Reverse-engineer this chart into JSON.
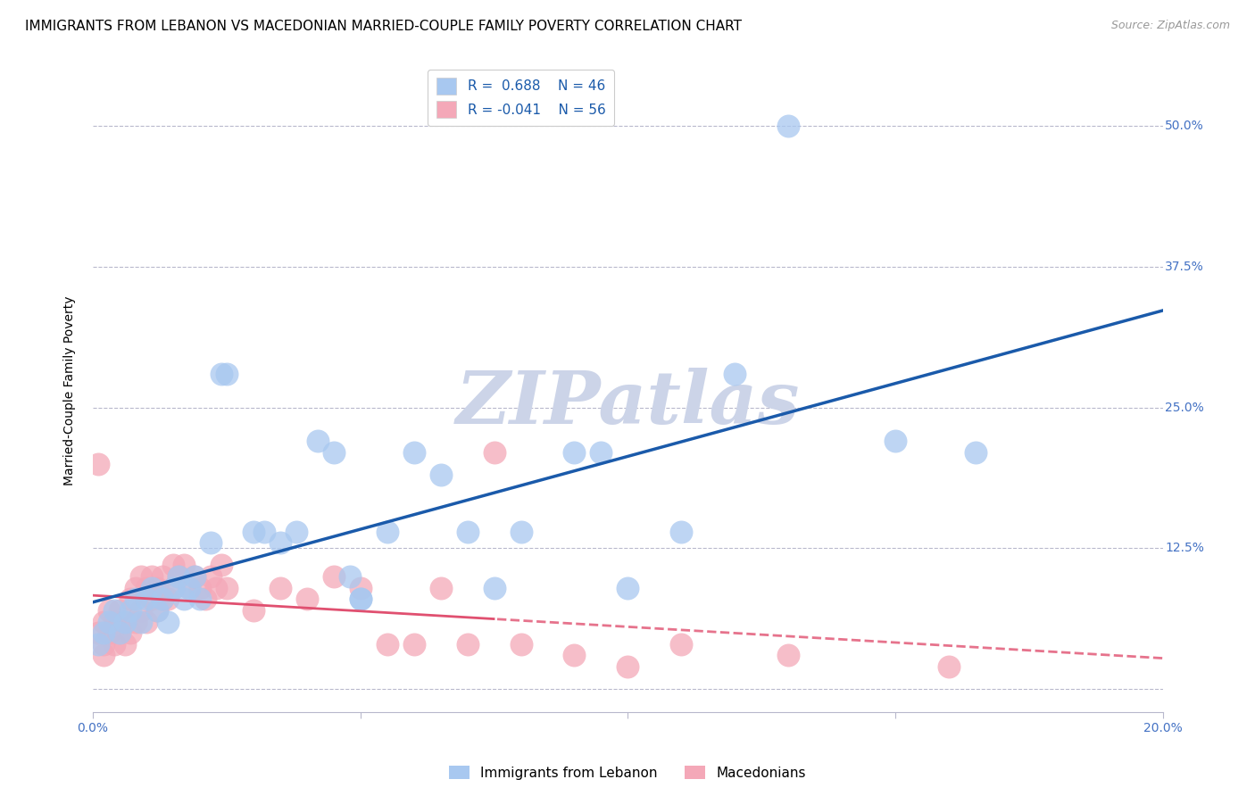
{
  "title": "IMMIGRANTS FROM LEBANON VS MACEDONIAN MARRIED-COUPLE FAMILY POVERTY CORRELATION CHART",
  "source": "Source: ZipAtlas.com",
  "ylabel_label": "Married-Couple Family Poverty",
  "xlim": [
    0.0,
    0.2
  ],
  "ylim": [
    -0.02,
    0.55
  ],
  "xticks": [
    0.0,
    0.05,
    0.1,
    0.15,
    0.2
  ],
  "yticks": [
    0.0,
    0.125,
    0.25,
    0.375,
    0.5
  ],
  "ytick_labels": [
    "",
    "12.5%",
    "25.0%",
    "37.5%",
    "50.0%"
  ],
  "watermark": "ZIPatlas",
  "legend_R_blue": "0.688",
  "legend_N_blue": "46",
  "legend_R_pink": "-0.041",
  "legend_N_pink": "56",
  "label_blue": "Immigrants from Lebanon",
  "label_pink": "Macedonians",
  "blue_scatter_x": [
    0.001,
    0.002,
    0.003,
    0.004,
    0.005,
    0.006,
    0.007,
    0.008,
    0.009,
    0.01,
    0.011,
    0.012,
    0.013,
    0.014,
    0.015,
    0.016,
    0.017,
    0.018,
    0.019,
    0.02,
    0.022,
    0.024,
    0.025,
    0.03,
    0.032,
    0.035,
    0.038,
    0.042,
    0.045,
    0.048,
    0.05,
    0.055,
    0.06,
    0.065,
    0.07,
    0.075,
    0.08,
    0.09,
    0.095,
    0.1,
    0.11,
    0.12,
    0.13,
    0.15,
    0.165,
    0.05
  ],
  "blue_scatter_y": [
    0.04,
    0.05,
    0.06,
    0.07,
    0.05,
    0.06,
    0.07,
    0.08,
    0.06,
    0.08,
    0.09,
    0.07,
    0.08,
    0.06,
    0.09,
    0.1,
    0.08,
    0.09,
    0.1,
    0.08,
    0.13,
    0.28,
    0.28,
    0.14,
    0.14,
    0.13,
    0.14,
    0.22,
    0.21,
    0.1,
    0.08,
    0.14,
    0.21,
    0.19,
    0.14,
    0.09,
    0.14,
    0.21,
    0.21,
    0.09,
    0.14,
    0.28,
    0.5,
    0.22,
    0.21,
    0.08
  ],
  "pink_scatter_x": [
    0.001,
    0.002,
    0.002,
    0.003,
    0.003,
    0.004,
    0.004,
    0.005,
    0.005,
    0.006,
    0.006,
    0.007,
    0.007,
    0.008,
    0.008,
    0.009,
    0.009,
    0.01,
    0.01,
    0.011,
    0.011,
    0.012,
    0.012,
    0.013,
    0.013,
    0.014,
    0.015,
    0.015,
    0.016,
    0.017,
    0.018,
    0.019,
    0.02,
    0.021,
    0.022,
    0.023,
    0.024,
    0.025,
    0.03,
    0.035,
    0.04,
    0.045,
    0.05,
    0.055,
    0.06,
    0.065,
    0.07,
    0.075,
    0.08,
    0.09,
    0.1,
    0.11,
    0.13,
    0.16,
    0.001,
    0.002
  ],
  "pink_scatter_y": [
    0.05,
    0.04,
    0.06,
    0.05,
    0.07,
    0.04,
    0.06,
    0.05,
    0.07,
    0.04,
    0.06,
    0.05,
    0.08,
    0.06,
    0.09,
    0.07,
    0.1,
    0.06,
    0.09,
    0.08,
    0.1,
    0.07,
    0.09,
    0.08,
    0.1,
    0.08,
    0.09,
    0.11,
    0.1,
    0.11,
    0.09,
    0.1,
    0.09,
    0.08,
    0.1,
    0.09,
    0.11,
    0.09,
    0.07,
    0.09,
    0.08,
    0.1,
    0.09,
    0.04,
    0.04,
    0.09,
    0.04,
    0.21,
    0.04,
    0.03,
    0.02,
    0.04,
    0.03,
    0.02,
    0.2,
    0.03
  ],
  "blue_line_color": "#1a5aaa",
  "pink_line_color": "#e05070",
  "scatter_blue_color": "#a8c8f0",
  "scatter_pink_color": "#f4a8b8",
  "grid_color": "#b8b8cc",
  "background_color": "#ffffff",
  "title_fontsize": 11,
  "axis_label_fontsize": 10,
  "tick_fontsize": 10,
  "tick_color": "#4472c4",
  "watermark_color": "#ccd4e8",
  "watermark_fontsize": 60
}
